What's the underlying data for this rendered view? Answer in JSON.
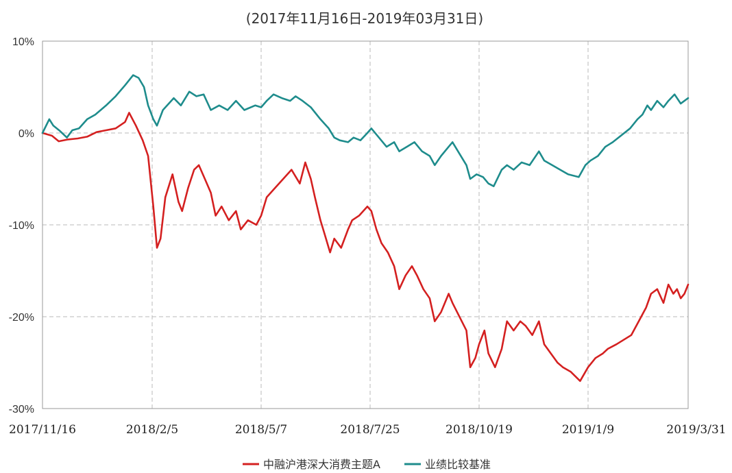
{
  "chart_data": {
    "type": "line",
    "title": "(2017年11月16日-2019年03月31日)",
    "xlabel": "",
    "ylabel": "",
    "x_ticks": [
      "2017/11/16",
      "2018/2/5",
      "2018/5/7",
      "2018/7/25",
      "2018/10/19",
      "2019/1/9",
      "2019/3/31"
    ],
    "y_ticks": [
      "10%",
      "0%",
      "-10%",
      "-20%",
      "-30%"
    ],
    "ylim": [
      -30,
      10
    ],
    "y_unit": "%",
    "grid": true,
    "legend_position": "bottom",
    "series": [
      {
        "name": "中融沪港深大消费主题A",
        "color": "#d42020",
        "points": [
          [
            "2017/11/16",
            0
          ],
          [
            "2017/11/23",
            -0.3
          ],
          [
            "2017/11/28",
            -0.9
          ],
          [
            "2017/12/5",
            -0.7
          ],
          [
            "2017/12/12",
            -0.6
          ],
          [
            "2017/12/19",
            -0.4
          ],
          [
            "2017/12/26",
            0.1
          ],
          [
            "2018/1/2",
            0.3
          ],
          [
            "2018/1/9",
            0.5
          ],
          [
            "2018/1/16",
            1.2
          ],
          [
            "2018/1/19",
            2.2
          ],
          [
            "2018/1/24",
            0.8
          ],
          [
            "2018/1/29",
            -0.8
          ],
          [
            "2018/2/2",
            -2.5
          ],
          [
            "2018/2/6",
            -8
          ],
          [
            "2018/2/9",
            -12.5
          ],
          [
            "2018/2/12",
            -11.5
          ],
          [
            "2018/2/16",
            -7
          ],
          [
            "2018/2/22",
            -4.5
          ],
          [
            "2018/2/27",
            -7.5
          ],
          [
            "2018/3/2",
            -8.5
          ],
          [
            "2018/3/7",
            -6
          ],
          [
            "2018/3/12",
            -4
          ],
          [
            "2018/3/16",
            -3.5
          ],
          [
            "2018/3/21",
            -5
          ],
          [
            "2018/3/26",
            -6.5
          ],
          [
            "2018/3/30",
            -9
          ],
          [
            "2018/4/4",
            -8
          ],
          [
            "2018/4/10",
            -9.5
          ],
          [
            "2018/4/16",
            -8.5
          ],
          [
            "2018/4/20",
            -10.5
          ],
          [
            "2018/4/26",
            -9.5
          ],
          [
            "2018/5/3",
            -10
          ],
          [
            "2018/5/7",
            -9
          ],
          [
            "2018/5/11",
            -7
          ],
          [
            "2018/5/17",
            -6
          ],
          [
            "2018/5/23",
            -5
          ],
          [
            "2018/5/29",
            -4
          ],
          [
            "2018/6/4",
            -5.5
          ],
          [
            "2018/6/8",
            -3.2
          ],
          [
            "2018/6/12",
            -5
          ],
          [
            "2018/6/15",
            -7
          ],
          [
            "2018/6/19",
            -9.5
          ],
          [
            "2018/6/22",
            -11
          ],
          [
            "2018/6/26",
            -13
          ],
          [
            "2018/6/29",
            -11.5
          ],
          [
            "2018/7/4",
            -12.5
          ],
          [
            "2018/7/9",
            -10.5
          ],
          [
            "2018/7/12",
            -9.5
          ],
          [
            "2018/7/17",
            -9
          ],
          [
            "2018/7/23",
            -8
          ],
          [
            "2018/7/26",
            -8.5
          ],
          [
            "2018/7/30",
            -10.5
          ],
          [
            "2018/8/3",
            -12
          ],
          [
            "2018/8/8",
            -13
          ],
          [
            "2018/8/13",
            -14.5
          ],
          [
            "2018/8/17",
            -17
          ],
          [
            "2018/8/22",
            -15.5
          ],
          [
            "2018/8/27",
            -14.5
          ],
          [
            "2018/8/31",
            -15.5
          ],
          [
            "2018/9/5",
            -17
          ],
          [
            "2018/9/10",
            -18
          ],
          [
            "2018/9/14",
            -20.5
          ],
          [
            "2018/9/19",
            -19.5
          ],
          [
            "2018/9/25",
            -17.5
          ],
          [
            "2018/9/28",
            -18.5
          ],
          [
            "2018/10/9",
            -21.5
          ],
          [
            "2018/10/12",
            -25.5
          ],
          [
            "2018/10/16",
            -24.5
          ],
          [
            "2018/10/19",
            -23
          ],
          [
            "2018/10/23",
            -21.5
          ],
          [
            "2018/10/26",
            -24
          ],
          [
            "2018/10/31",
            -25.5
          ],
          [
            "2018/11/5",
            -23.5
          ],
          [
            "2018/11/9",
            -20.5
          ],
          [
            "2018/11/14",
            -21.5
          ],
          [
            "2018/11/19",
            -20.5
          ],
          [
            "2018/11/23",
            -21
          ],
          [
            "2018/11/28",
            -22
          ],
          [
            "2018/12/3",
            -20.5
          ],
          [
            "2018/12/7",
            -23
          ],
          [
            "2018/12/12",
            -24
          ],
          [
            "2018/12/17",
            -25
          ],
          [
            "2018/12/21",
            -25.5
          ],
          [
            "2018/12/27",
            -26
          ],
          [
            "2019/1/3",
            -27
          ],
          [
            "2019/1/9",
            -25.5
          ],
          [
            "2019/1/15",
            -24.5
          ],
          [
            "2019/1/21",
            -24
          ],
          [
            "2019/1/25",
            -23.5
          ],
          [
            "2019/2/1",
            -23
          ],
          [
            "2019/2/13",
            -22
          ],
          [
            "2019/2/19",
            -20.5
          ],
          [
            "2019/2/25",
            -19
          ],
          [
            "2019/3/1",
            -17.5
          ],
          [
            "2019/3/6",
            -17
          ],
          [
            "2019/3/11",
            -18.5
          ],
          [
            "2019/3/15",
            -16.5
          ],
          [
            "2019/3/19",
            -17.5
          ],
          [
            "2019/3/22",
            -17
          ],
          [
            "2019/3/25",
            -18
          ],
          [
            "2019/3/28",
            -17.5
          ],
          [
            "2019/3/31",
            -16.5
          ]
        ]
      },
      {
        "name": "业绩比较基准",
        "color": "#1e8c8c",
        "points": [
          [
            "2017/11/16",
            0
          ],
          [
            "2017/11/21",
            1.5
          ],
          [
            "2017/11/24",
            0.8
          ],
          [
            "2017/11/29",
            0.2
          ],
          [
            "2017/12/4",
            -0.5
          ],
          [
            "2017/12/8",
            0.3
          ],
          [
            "2017/12/13",
            0.5
          ],
          [
            "2017/12/19",
            1.5
          ],
          [
            "2017/12/25",
            2
          ],
          [
            "2018/1/2",
            3
          ],
          [
            "2018/1/9",
            4
          ],
          [
            "2018/1/16",
            5.2
          ],
          [
            "2018/1/22",
            6.3
          ],
          [
            "2018/1/26",
            6
          ],
          [
            "2018/1/30",
            5
          ],
          [
            "2018/2/2",
            3
          ],
          [
            "2018/2/6",
            1.5
          ],
          [
            "2018/2/9",
            0.8
          ],
          [
            "2018/2/14",
            2.5
          ],
          [
            "2018/2/23",
            3.8
          ],
          [
            "2018/3/1",
            3
          ],
          [
            "2018/3/8",
            4.5
          ],
          [
            "2018/3/14",
            4
          ],
          [
            "2018/3/20",
            4.2
          ],
          [
            "2018/3/26",
            2.5
          ],
          [
            "2018/4/2",
            3
          ],
          [
            "2018/4/9",
            2.5
          ],
          [
            "2018/4/16",
            3.5
          ],
          [
            "2018/4/23",
            2.5
          ],
          [
            "2018/5/2",
            3
          ],
          [
            "2018/5/7",
            2.8
          ],
          [
            "2018/5/11",
            3.5
          ],
          [
            "2018/5/16",
            4.2
          ],
          [
            "2018/5/22",
            3.8
          ],
          [
            "2018/5/28",
            3.5
          ],
          [
            "2018/6/1",
            4
          ],
          [
            "2018/6/6",
            3.5
          ],
          [
            "2018/6/12",
            2.8
          ],
          [
            "2018/6/19",
            1.5
          ],
          [
            "2018/6/25",
            0.5
          ],
          [
            "2018/6/29",
            -0.5
          ],
          [
            "2018/7/3",
            -0.8
          ],
          [
            "2018/7/9",
            -1
          ],
          [
            "2018/7/13",
            -0.5
          ],
          [
            "2018/7/18",
            -0.8
          ],
          [
            "2018/7/23",
            0
          ],
          [
            "2018/7/26",
            0.5
          ],
          [
            "2018/8/1",
            -0.5
          ],
          [
            "2018/8/7",
            -1.5
          ],
          [
            "2018/8/13",
            -1
          ],
          [
            "2018/8/17",
            -2
          ],
          [
            "2018/8/23",
            -1.5
          ],
          [
            "2018/8/29",
            -1
          ],
          [
            "2018/9/4",
            -2
          ],
          [
            "2018/9/10",
            -2.5
          ],
          [
            "2018/9/14",
            -3.5
          ],
          [
            "2018/9/19",
            -2.5
          ],
          [
            "2018/9/25",
            -1.5
          ],
          [
            "2018/9/28",
            -1
          ],
          [
            "2018/10/9",
            -3.5
          ],
          [
            "2018/10/12",
            -5
          ],
          [
            "2018/10/17",
            -4.5
          ],
          [
            "2018/10/22",
            -4.8
          ],
          [
            "2018/10/26",
            -5.5
          ],
          [
            "2018/10/30",
            -5.8
          ],
          [
            "2018/11/5",
            -4
          ],
          [
            "2018/11/9",
            -3.5
          ],
          [
            "2018/11/14",
            -4
          ],
          [
            "2018/11/20",
            -3.2
          ],
          [
            "2018/11/26",
            -3.5
          ],
          [
            "2018/12/3",
            -2
          ],
          [
            "2018/12/7",
            -3
          ],
          [
            "2018/12/13",
            -3.5
          ],
          [
            "2018/12/19",
            -4
          ],
          [
            "2018/12/25",
            -4.5
          ],
          [
            "2019/1/2",
            -4.8
          ],
          [
            "2019/1/7",
            -3.5
          ],
          [
            "2019/1/11",
            -3
          ],
          [
            "2019/1/17",
            -2.5
          ],
          [
            "2019/1/23",
            -1.5
          ],
          [
            "2019/1/29",
            -1
          ],
          [
            "2019/2/12",
            0.5
          ],
          [
            "2019/2/18",
            1.5
          ],
          [
            "2019/2/22",
            2
          ],
          [
            "2019/2/26",
            3
          ],
          [
            "2019/3/1",
            2.5
          ],
          [
            "2019/3/6",
            3.5
          ],
          [
            "2019/3/11",
            2.8
          ],
          [
            "2019/3/15",
            3.5
          ],
          [
            "2019/3/20",
            4.2
          ],
          [
            "2019/3/25",
            3.2
          ],
          [
            "2019/3/31",
            3.8
          ]
        ]
      }
    ]
  }
}
